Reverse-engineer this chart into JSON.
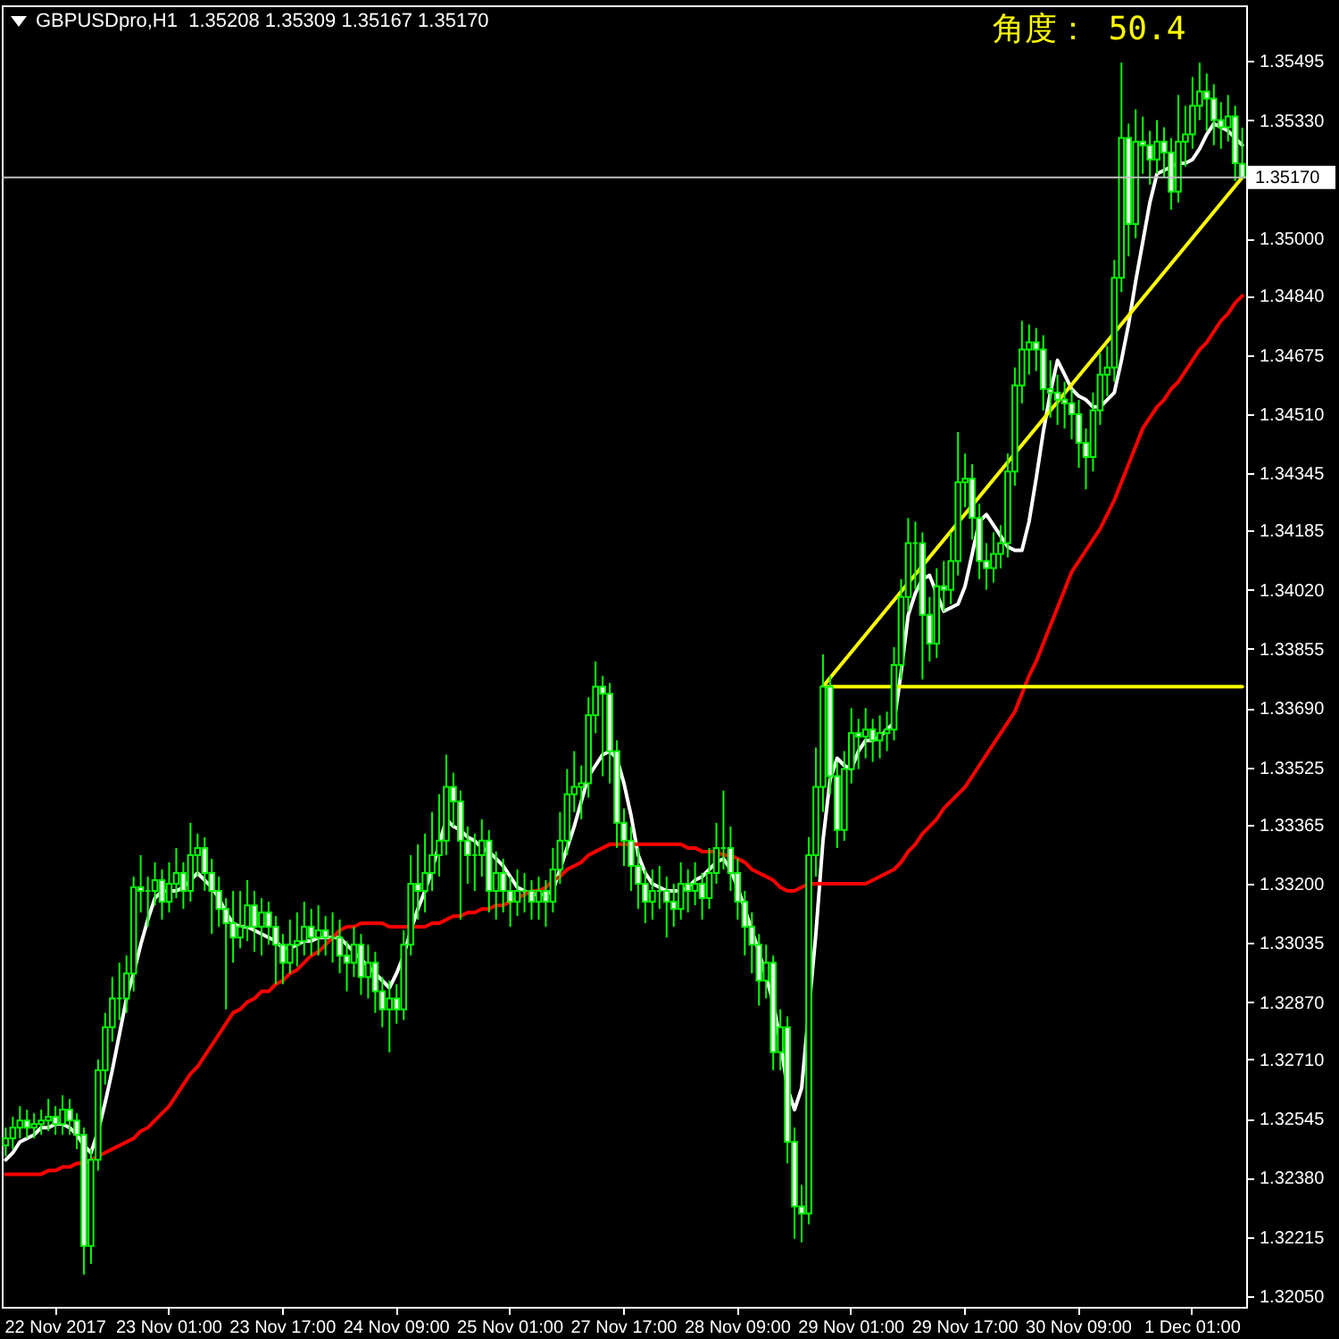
{
  "chart_data": {
    "type": "candlestick",
    "title": "GBPUSDpro,H1  1.35208 1.35309 1.35167 1.35170",
    "annotations": [
      "角度： 50.4"
    ],
    "color": "#00ff00",
    "categories": [
      null,
      null,
      null,
      null,
      null,
      null,
      null,
      "22 Nov 2017",
      null,
      null,
      null,
      null,
      null,
      null,
      null,
      null,
      null,
      null,
      null,
      null,
      null,
      null,
      null,
      "23 Nov 01:00",
      null,
      null,
      null,
      null,
      null,
      null,
      null,
      null,
      null,
      null,
      null,
      null,
      null,
      null,
      null,
      "23 Nov 17:00",
      null,
      null,
      null,
      null,
      null,
      null,
      null,
      null,
      null,
      null,
      null,
      null,
      null,
      null,
      null,
      "24 Nov 09:00",
      null,
      null,
      null,
      null,
      null,
      null,
      null,
      null,
      null,
      null,
      null,
      null,
      null,
      null,
      null,
      "25 Nov 01:00",
      null,
      null,
      null,
      null,
      null,
      null,
      null,
      null,
      null,
      null,
      null,
      null,
      null,
      null,
      null,
      "27 Nov 17:00",
      null,
      null,
      null,
      null,
      null,
      null,
      null,
      null,
      null,
      null,
      null,
      null,
      null,
      null,
      null,
      "28 Nov 09:00",
      null,
      null,
      null,
      null,
      null,
      null,
      null,
      null,
      null,
      null,
      null,
      null,
      null,
      null,
      null,
      "29 Nov 01:00",
      null,
      null,
      null,
      null,
      null,
      null,
      null,
      null,
      null,
      null,
      null,
      null,
      null,
      null,
      null,
      "29 Nov 17:00",
      null,
      null,
      null,
      null,
      null,
      null,
      null,
      null,
      null,
      null,
      null,
      null,
      null,
      null,
      null,
      "30 Nov 09:00",
      null,
      null,
      null,
      null,
      null,
      null,
      null,
      null,
      null,
      null,
      null,
      null,
      null,
      null,
      null,
      "1 Dec 01:00",
      null,
      null,
      null,
      null,
      null,
      null,
      null
    ],
    "ylim": [
      1.3202,
      1.3565
    ],
    "yticks": [
      {
        "value": 1.35495,
        "label": "1.35495"
      },
      {
        "value": 1.3533,
        "label": "1.35330"
      },
      {
        "value": 1.35,
        "label": "1.35000"
      },
      {
        "value": 1.3484,
        "label": "1.34840"
      },
      {
        "value": 1.34675,
        "label": "1.34675"
      },
      {
        "value": 1.3451,
        "label": "1.34510"
      },
      {
        "value": 1.34345,
        "label": "1.34345"
      },
      {
        "value": 1.34185,
        "label": "1.34185"
      },
      {
        "value": 1.3402,
        "label": "1.34020"
      },
      {
        "value": 1.33855,
        "label": "1.33855"
      },
      {
        "value": 1.3369,
        "label": "1.33690"
      },
      {
        "value": 1.33525,
        "label": "1.33525"
      },
      {
        "value": 1.33365,
        "label": "1.33365"
      },
      {
        "value": 1.332,
        "label": "1.33200"
      },
      {
        "value": 1.33035,
        "label": "1.33035"
      },
      {
        "value": 1.3287,
        "label": "1.32870"
      },
      {
        "value": 1.3271,
        "label": "1.32710"
      },
      {
        "value": 1.32545,
        "label": "1.32545"
      },
      {
        "value": 1.3238,
        "label": "1.32380"
      },
      {
        "value": 1.32215,
        "label": "1.32215"
      },
      {
        "value": 1.3205,
        "label": "1.32050"
      }
    ],
    "ref_lines": [
      {
        "axis": "y",
        "value": 1.3517,
        "label": "1.35170",
        "color": "#c0c0c0"
      }
    ],
    "ohlc": [
      [
        1.3247,
        1.3252,
        1.3244,
        1.3249
      ],
      [
        1.3249,
        1.3255,
        1.3246,
        1.3252
      ],
      [
        1.3252,
        1.3258,
        1.3249,
        1.3254
      ],
      [
        1.3254,
        1.3257,
        1.3249,
        1.3252
      ],
      [
        1.3252,
        1.3256,
        1.3249,
        1.3253
      ],
      [
        1.3253,
        1.3257,
        1.325,
        1.3254
      ],
      [
        1.3254,
        1.326,
        1.3251,
        1.3255
      ],
      [
        1.3255,
        1.3258,
        1.325,
        1.3253
      ],
      [
        1.3253,
        1.3261,
        1.325,
        1.3257
      ],
      [
        1.3257,
        1.326,
        1.325,
        1.3254
      ],
      [
        1.3254,
        1.3256,
        1.3246,
        1.325
      ],
      [
        1.325,
        1.3252,
        1.3211,
        1.3219
      ],
      [
        1.3219,
        1.3246,
        1.3214,
        1.3243
      ],
      [
        1.3243,
        1.3271,
        1.324,
        1.3268
      ],
      [
        1.3268,
        1.3284,
        1.3264,
        1.328
      ],
      [
        1.328,
        1.3294,
        1.3276,
        1.3288
      ],
      [
        1.3288,
        1.3298,
        1.3282,
        1.3288
      ],
      [
        1.3288,
        1.33,
        1.3284,
        1.3295
      ],
      [
        1.3295,
        1.3322,
        1.329,
        1.3319
      ],
      [
        1.3319,
        1.3328,
        1.3312,
        1.3318
      ],
      [
        1.3318,
        1.3322,
        1.3308,
        1.3318
      ],
      [
        1.3318,
        1.3326,
        1.3314,
        1.3321
      ],
      [
        1.3321,
        1.3324,
        1.331,
        1.3315
      ],
      [
        1.3315,
        1.3326,
        1.3312,
        1.332
      ],
      [
        1.332,
        1.333,
        1.3316,
        1.3323
      ],
      [
        1.3323,
        1.3326,
        1.3313,
        1.3318
      ],
      [
        1.3318,
        1.3337,
        1.3315,
        1.3328
      ],
      [
        1.3328,
        1.3334,
        1.3322,
        1.333
      ],
      [
        1.333,
        1.3333,
        1.3318,
        1.3323
      ],
      [
        1.3323,
        1.3327,
        1.3306,
        1.3318
      ],
      [
        1.3318,
        1.3322,
        1.3308,
        1.3313
      ],
      [
        1.3313,
        1.3316,
        1.3285,
        1.3309
      ],
      [
        1.3309,
        1.3318,
        1.3298,
        1.3305
      ],
      [
        1.3305,
        1.3318,
        1.3302,
        1.3308
      ],
      [
        1.3308,
        1.3321,
        1.3304,
        1.3314
      ],
      [
        1.3314,
        1.3318,
        1.3301,
        1.3308
      ],
      [
        1.3308,
        1.3316,
        1.33,
        1.3312
      ],
      [
        1.3312,
        1.3315,
        1.3303,
        1.3308
      ],
      [
        1.3308,
        1.3311,
        1.3292,
        1.3303
      ],
      [
        1.3303,
        1.3306,
        1.3292,
        1.3298
      ],
      [
        1.3298,
        1.331,
        1.3295,
        1.3303
      ],
      [
        1.3303,
        1.3312,
        1.3297,
        1.3304
      ],
      [
        1.3304,
        1.3315,
        1.33,
        1.3308
      ],
      [
        1.3308,
        1.3313,
        1.33,
        1.3305
      ],
      [
        1.3305,
        1.3314,
        1.33,
        1.3307
      ],
      [
        1.3307,
        1.3311,
        1.33,
        1.3305
      ],
      [
        1.3305,
        1.3312,
        1.3298,
        1.3305
      ],
      [
        1.3305,
        1.331,
        1.3295,
        1.33
      ],
      [
        1.33,
        1.3304,
        1.329,
        1.3298
      ],
      [
        1.3298,
        1.3308,
        1.3294,
        1.3303
      ],
      [
        1.3303,
        1.3306,
        1.3289,
        1.3294
      ],
      [
        1.3294,
        1.3303,
        1.3288,
        1.3298
      ],
      [
        1.3298,
        1.3301,
        1.3284,
        1.329
      ],
      [
        1.329,
        1.3294,
        1.328,
        1.3285
      ],
      [
        1.3285,
        1.3293,
        1.3273,
        1.3288
      ],
      [
        1.3288,
        1.3292,
        1.3281,
        1.3285
      ],
      [
        1.3285,
        1.3307,
        1.3282,
        1.3303
      ],
      [
        1.3303,
        1.3328,
        1.33,
        1.332
      ],
      [
        1.332,
        1.3331,
        1.331,
        1.3318
      ],
      [
        1.3318,
        1.3334,
        1.3312,
        1.3323
      ],
      [
        1.3323,
        1.334,
        1.3318,
        1.3328
      ],
      [
        1.3328,
        1.3345,
        1.3322,
        1.3332
      ],
      [
        1.3332,
        1.3356,
        1.3328,
        1.3347
      ],
      [
        1.3347,
        1.3351,
        1.3336,
        1.3343
      ],
      [
        1.3343,
        1.3346,
        1.331,
        1.3332
      ],
      [
        1.3332,
        1.3336,
        1.332,
        1.3328
      ],
      [
        1.3328,
        1.3334,
        1.3318,
        1.3328
      ],
      [
        1.3328,
        1.3338,
        1.3322,
        1.3332
      ],
      [
        1.3332,
        1.3335,
        1.3312,
        1.3318
      ],
      [
        1.3318,
        1.3329,
        1.331,
        1.3323
      ],
      [
        1.3323,
        1.3327,
        1.3312,
        1.3318
      ],
      [
        1.3318,
        1.3322,
        1.3308,
        1.3315
      ],
      [
        1.3315,
        1.3324,
        1.3311,
        1.3318
      ],
      [
        1.3318,
        1.3323,
        1.3312,
        1.3318
      ],
      [
        1.3318,
        1.3321,
        1.331,
        1.3315
      ],
      [
        1.3315,
        1.3322,
        1.331,
        1.3318
      ],
      [
        1.3318,
        1.3321,
        1.3308,
        1.3315
      ],
      [
        1.3315,
        1.333,
        1.3312,
        1.3324
      ],
      [
        1.3324,
        1.334,
        1.332,
        1.3332
      ],
      [
        1.3332,
        1.3352,
        1.3328,
        1.3345
      ],
      [
        1.3345,
        1.3357,
        1.334,
        1.3347
      ],
      [
        1.3347,
        1.3353,
        1.3338,
        1.3348
      ],
      [
        1.3348,
        1.3372,
        1.3344,
        1.3367
      ],
      [
        1.3367,
        1.3382,
        1.3362,
        1.3375
      ],
      [
        1.3375,
        1.3378,
        1.335,
        1.3373
      ],
      [
        1.3373,
        1.3376,
        1.3348,
        1.3357
      ],
      [
        1.3357,
        1.336,
        1.333,
        1.3337
      ],
      [
        1.3337,
        1.3341,
        1.3325,
        1.3332
      ],
      [
        1.3332,
        1.3336,
        1.3318,
        1.3325
      ],
      [
        1.3325,
        1.333,
        1.3313,
        1.332
      ],
      [
        1.332,
        1.3324,
        1.3309,
        1.3315
      ],
      [
        1.3315,
        1.3324,
        1.331,
        1.3318
      ],
      [
        1.3318,
        1.3325,
        1.3313,
        1.3318
      ],
      [
        1.3318,
        1.3322,
        1.3305,
        1.3315
      ],
      [
        1.3315,
        1.332,
        1.3308,
        1.3313
      ],
      [
        1.3313,
        1.3326,
        1.331,
        1.332
      ],
      [
        1.332,
        1.3324,
        1.3312,
        1.3318
      ],
      [
        1.3318,
        1.3326,
        1.3314,
        1.332
      ],
      [
        1.332,
        1.3323,
        1.331,
        1.3316
      ],
      [
        1.3316,
        1.333,
        1.3313,
        1.3323
      ],
      [
        1.3323,
        1.3337,
        1.332,
        1.333
      ],
      [
        1.333,
        1.3346,
        1.3324,
        1.333
      ],
      [
        1.333,
        1.3336,
        1.3318,
        1.3323
      ],
      [
        1.3323,
        1.3327,
        1.331,
        1.3315
      ],
      [
        1.3315,
        1.3318,
        1.33,
        1.3308
      ],
      [
        1.3308,
        1.3312,
        1.3295,
        1.3303
      ],
      [
        1.3303,
        1.3306,
        1.3286,
        1.3293
      ],
      [
        1.3293,
        1.3303,
        1.3288,
        1.3298
      ],
      [
        1.3298,
        1.33,
        1.3268,
        1.3273
      ],
      [
        1.3273,
        1.3285,
        1.3268,
        1.328
      ],
      [
        1.328,
        1.3283,
        1.3242,
        1.3248
      ],
      [
        1.3248,
        1.3252,
        1.3221,
        1.323
      ],
      [
        1.323,
        1.3236,
        1.322,
        1.3228
      ],
      [
        1.3228,
        1.3333,
        1.3225,
        1.3328
      ],
      [
        1.3328,
        1.3358,
        1.3322,
        1.3347
      ],
      [
        1.3347,
        1.3384,
        1.334,
        1.3375
      ],
      [
        1.3375,
        1.3378,
        1.3345,
        1.335
      ],
      [
        1.335,
        1.3354,
        1.333,
        1.3335
      ],
      [
        1.3335,
        1.3357,
        1.3332,
        1.3352
      ],
      [
        1.3352,
        1.3369,
        1.3348,
        1.3362
      ],
      [
        1.3362,
        1.3366,
        1.3352,
        1.3361
      ],
      [
        1.3361,
        1.3369,
        1.3355,
        1.3363
      ],
      [
        1.3363,
        1.3366,
        1.3354,
        1.336
      ],
      [
        1.336,
        1.3367,
        1.3355,
        1.3362
      ],
      [
        1.3362,
        1.3368,
        1.3357,
        1.3363
      ],
      [
        1.3363,
        1.3386,
        1.336,
        1.3381
      ],
      [
        1.3381,
        1.3405,
        1.3377,
        1.34
      ],
      [
        1.34,
        1.3422,
        1.3396,
        1.3415
      ],
      [
        1.3415,
        1.3421,
        1.3402,
        1.3415
      ],
      [
        1.3415,
        1.3418,
        1.3377,
        1.3395
      ],
      [
        1.3395,
        1.34,
        1.3382,
        1.3387
      ],
      [
        1.3387,
        1.3408,
        1.3383,
        1.3403
      ],
      [
        1.3403,
        1.341,
        1.3396,
        1.3402
      ],
      [
        1.3402,
        1.3418,
        1.3398,
        1.341
      ],
      [
        1.341,
        1.3446,
        1.3406,
        1.3432
      ],
      [
        1.3432,
        1.344,
        1.3425,
        1.3433
      ],
      [
        1.3433,
        1.3437,
        1.3416,
        1.3422
      ],
      [
        1.3422,
        1.3426,
        1.3405,
        1.341
      ],
      [
        1.341,
        1.3415,
        1.3402,
        1.3408
      ],
      [
        1.3408,
        1.3418,
        1.3404,
        1.3412
      ],
      [
        1.3412,
        1.342,
        1.3408,
        1.3415
      ],
      [
        1.3415,
        1.344,
        1.3411,
        1.3435
      ],
      [
        1.3435,
        1.3464,
        1.3431,
        1.3459
      ],
      [
        1.3459,
        1.3477,
        1.3454,
        1.3469
      ],
      [
        1.3469,
        1.3476,
        1.3462,
        1.3471
      ],
      [
        1.3471,
        1.3475,
        1.3463,
        1.3469
      ],
      [
        1.3469,
        1.3473,
        1.3452,
        1.3458
      ],
      [
        1.3458,
        1.3466,
        1.345,
        1.3457
      ],
      [
        1.3457,
        1.3462,
        1.3448,
        1.3455
      ],
      [
        1.3455,
        1.346,
        1.3447,
        1.3454
      ],
      [
        1.3454,
        1.3458,
        1.3444,
        1.3451
      ],
      [
        1.3451,
        1.3455,
        1.3436,
        1.3443
      ],
      [
        1.3443,
        1.3447,
        1.343,
        1.3439
      ],
      [
        1.3439,
        1.3457,
        1.3435,
        1.3452
      ],
      [
        1.3452,
        1.3468,
        1.3448,
        1.3462
      ],
      [
        1.3462,
        1.347,
        1.3456,
        1.3464
      ],
      [
        1.3464,
        1.3494,
        1.346,
        1.3489
      ],
      [
        1.3489,
        1.3549,
        1.3485,
        1.3528
      ],
      [
        1.3528,
        1.3532,
        1.3495,
        1.3504
      ],
      [
        1.3504,
        1.3536,
        1.35,
        1.3527
      ],
      [
        1.3527,
        1.3534,
        1.3518,
        1.3526
      ],
      [
        1.3526,
        1.353,
        1.3515,
        1.3522
      ],
      [
        1.3522,
        1.3533,
        1.3518,
        1.3527
      ],
      [
        1.3527,
        1.3531,
        1.3517,
        1.3524
      ],
      [
        1.3524,
        1.3528,
        1.3508,
        1.3513
      ],
      [
        1.3513,
        1.354,
        1.351,
        1.3527
      ],
      [
        1.3527,
        1.3537,
        1.352,
        1.3529
      ],
      [
        1.3529,
        1.3545,
        1.3525,
        1.3537
      ],
      [
        1.3537,
        1.3549,
        1.3533,
        1.3541
      ],
      [
        1.3541,
        1.3546,
        1.353,
        1.3539
      ],
      [
        1.3539,
        1.3543,
        1.3526,
        1.3533
      ],
      [
        1.3533,
        1.3538,
        1.3525,
        1.3531
      ],
      [
        1.3531,
        1.354,
        1.3527,
        1.3534
      ],
      [
        1.3534,
        1.3537,
        1.3516,
        1.3521
      ],
      [
        1.35208,
        1.35309,
        1.35167,
        1.3517
      ]
    ],
    "series": [
      {
        "type": "line",
        "color": "#ffffff",
        "values": [
          1.3243,
          1.3245,
          1.3248,
          1.3249,
          1.325,
          1.3252,
          1.3252,
          1.3253,
          1.3253,
          1.3252,
          1.325,
          1.3247,
          1.3245,
          1.3251,
          1.3259,
          1.3268,
          1.3278,
          1.3288,
          1.3295,
          1.3303,
          1.331,
          1.3316,
          1.3318,
          1.3318,
          1.3318,
          1.3319,
          1.3321,
          1.3323,
          1.3321,
          1.3319,
          1.3316,
          1.3312,
          1.3309,
          1.3308,
          1.3308,
          1.3307,
          1.3306,
          1.3305,
          1.3304,
          1.3302,
          1.3302,
          1.3303,
          1.3304,
          1.3304,
          1.3305,
          1.3305,
          1.3305,
          1.3305,
          1.3303,
          1.3301,
          1.3299,
          1.3297,
          1.3295,
          1.3293,
          1.3291,
          1.3295,
          1.33,
          1.3307,
          1.3313,
          1.3318,
          1.3324,
          1.3331,
          1.3338,
          1.3336,
          1.3335,
          1.3333,
          1.3332,
          1.333,
          1.3329,
          1.3327,
          1.3325,
          1.3322,
          1.3319,
          1.3318,
          1.3317,
          1.3317,
          1.3317,
          1.3318,
          1.3324,
          1.333,
          1.3336,
          1.3343,
          1.335,
          1.3353,
          1.3356,
          1.3357,
          1.3355,
          1.3348,
          1.3339,
          1.3328,
          1.3323,
          1.332,
          1.3319,
          1.3318,
          1.3318,
          1.3318,
          1.3319,
          1.3321,
          1.3322,
          1.3324,
          1.3326,
          1.3327,
          1.3324,
          1.3319,
          1.3313,
          1.3307,
          1.3301,
          1.3294,
          1.3287,
          1.3276,
          1.3263,
          1.3257,
          1.3263,
          null,
          1.3306,
          1.3332,
          1.3349,
          1.3355,
          1.3353,
          1.3352,
          1.3357,
          1.336,
          1.336,
          1.3361,
          1.3363,
          1.3365,
          1.3379,
          1.3395,
          1.3401,
          1.3405,
          1.3406,
          1.3401,
          1.3396,
          1.3397,
          1.3398,
          1.3403,
          1.3412,
          1.3421,
          1.3423,
          1.342,
          1.3417,
          1.3414,
          1.3413,
          1.3413,
          1.3421,
          1.3433,
          1.3446,
          1.3457,
          1.3466,
          1.3462,
          1.3458,
          1.3456,
          1.3455,
          1.3453,
          1.3453,
          1.3455,
          1.3457,
          1.3466,
          1.3476,
          1.3488,
          1.3499,
          1.351,
          1.3518,
          1.3519,
          1.352,
          1.3521,
          1.3521,
          1.3522,
          1.3525,
          1.3529,
          1.3532,
          1.3531,
          1.353,
          1.3528,
          1.3526
        ]
      },
      {
        "type": "line",
        "color": "#ff0000",
        "values": [
          1.3239,
          1.3239,
          1.3239,
          1.3239,
          1.3239,
          1.3239,
          1.324,
          1.324,
          1.3241,
          1.3241,
          1.3242,
          1.3242,
          1.3243,
          1.3244,
          1.3245,
          1.3246,
          1.3247,
          1.3248,
          1.3249,
          1.3251,
          1.3252,
          1.3254,
          1.3256,
          1.3258,
          1.3261,
          1.3264,
          1.3267,
          1.3269,
          1.3272,
          1.3275,
          1.3278,
          1.3281,
          1.3284,
          1.3285,
          1.3287,
          1.3288,
          1.329,
          1.329,
          1.3292,
          1.3293,
          1.3295,
          1.3296,
          1.3298,
          1.33,
          1.3301,
          1.3303,
          1.3305,
          1.3307,
          1.3308,
          1.3308,
          1.3309,
          1.3309,
          1.3309,
          1.3309,
          1.3308,
          1.3308,
          1.3308,
          1.3308,
          1.3308,
          1.3308,
          1.3309,
          1.3309,
          1.331,
          1.3311,
          1.3311,
          1.3312,
          1.3312,
          1.3313,
          1.3313,
          1.3314,
          1.3314,
          1.3315,
          1.3316,
          1.3317,
          1.3318,
          1.3318,
          1.3319,
          1.3321,
          1.3322,
          1.3324,
          1.3325,
          1.3326,
          1.3328,
          1.3329,
          1.333,
          1.3331,
          1.3331,
          1.3331,
          1.3331,
          1.3331,
          1.3331,
          1.3331,
          1.3331,
          1.3331,
          1.3331,
          1.3331,
          1.333,
          1.333,
          1.3329,
          1.3329,
          1.3329,
          1.3328,
          1.3328,
          1.3327,
          1.3326,
          1.3324,
          1.3323,
          1.3322,
          1.3321,
          1.3319,
          1.3318,
          1.3318,
          1.3319,
          1.332,
          1.332,
          1.332,
          1.332,
          1.332,
          1.332,
          1.332,
          1.332,
          1.332,
          1.3321,
          1.3322,
          1.3323,
          1.3324,
          1.3326,
          1.3329,
          1.3331,
          1.3334,
          1.3336,
          1.3338,
          1.3341,
          1.3343,
          1.3345,
          1.3347,
          1.335,
          1.3353,
          1.3356,
          1.3359,
          1.3362,
          1.3365,
          1.3368,
          1.3373,
          1.3378,
          1.3382,
          1.3387,
          1.3392,
          1.3397,
          1.3402,
          1.3407,
          1.341,
          1.3413,
          1.3416,
          1.3419,
          1.3423,
          1.3427,
          1.3432,
          1.3437,
          1.3442,
          1.3447,
          1.345,
          1.3453,
          1.3455,
          1.3458,
          1.346,
          1.3463,
          1.3466,
          1.3469,
          1.3471,
          1.3474,
          1.3477,
          1.3479,
          1.3482,
          1.3484
        ]
      },
      {
        "type": "line",
        "color": "#ffff00",
        "values": [
          null,
          null,
          null,
          null,
          null,
          null,
          null,
          null,
          null,
          null,
          null,
          null,
          null,
          null,
          null,
          null,
          null,
          null,
          null,
          null,
          null,
          null,
          null,
          null,
          null,
          null,
          null,
          null,
          null,
          null,
          null,
          null,
          null,
          null,
          null,
          null,
          null,
          null,
          null,
          null,
          null,
          null,
          null,
          null,
          null,
          null,
          null,
          null,
          null,
          null,
          null,
          null,
          null,
          null,
          null,
          null,
          null,
          null,
          null,
          null,
          null,
          null,
          null,
          null,
          null,
          null,
          null,
          null,
          null,
          null,
          null,
          null,
          null,
          null,
          null,
          null,
          null,
          null,
          null,
          null,
          null,
          null,
          null,
          null,
          null,
          null,
          null,
          null,
          null,
          null,
          null,
          null,
          null,
          null,
          null,
          null,
          null,
          null,
          null,
          null,
          null,
          null,
          null,
          null,
          null,
          null,
          null,
          null,
          null,
          null,
          null,
          null,
          null,
          null,
          null,
          1.3375,
          null,
          null,
          null,
          null,
          null,
          null,
          null,
          null,
          null,
          null,
          null,
          null,
          null,
          null,
          null,
          null,
          null,
          null,
          null,
          null,
          null,
          null,
          null,
          null,
          null,
          null,
          null,
          null,
          null,
          null,
          null,
          null,
          null,
          null,
          null,
          null,
          null,
          null,
          null,
          null,
          null,
          null,
          null,
          null,
          null,
          null,
          null,
          null,
          null,
          null,
          null,
          null,
          null,
          null,
          null,
          null,
          null,
          null,
          1.3517
        ]
      },
      {
        "type": "line",
        "color": "#ffff00",
        "values": [
          null,
          null,
          null,
          null,
          null,
          null,
          null,
          null,
          null,
          null,
          null,
          null,
          null,
          null,
          null,
          null,
          null,
          null,
          null,
          null,
          null,
          null,
          null,
          null,
          null,
          null,
          null,
          null,
          null,
          null,
          null,
          null,
          null,
          null,
          null,
          null,
          null,
          null,
          null,
          null,
          null,
          null,
          null,
          null,
          null,
          null,
          null,
          null,
          null,
          null,
          null,
          null,
          null,
          null,
          null,
          null,
          null,
          null,
          null,
          null,
          null,
          null,
          null,
          null,
          null,
          null,
          null,
          null,
          null,
          null,
          null,
          null,
          null,
          null,
          null,
          null,
          null,
          null,
          null,
          null,
          null,
          null,
          null,
          null,
          null,
          null,
          null,
          null,
          null,
          null,
          null,
          null,
          null,
          null,
          null,
          null,
          null,
          null,
          null,
          null,
          null,
          null,
          null,
          null,
          null,
          null,
          null,
          null,
          null,
          null,
          null,
          null,
          null,
          null,
          null,
          1.3375,
          null,
          null,
          null,
          null,
          null,
          null,
          null,
          null,
          null,
          null,
          null,
          null,
          null,
          null,
          null,
          null,
          null,
          null,
          null,
          null,
          null,
          null,
          null,
          null,
          null,
          null,
          null,
          null,
          null,
          null,
          null,
          null,
          null,
          null,
          null,
          null,
          null,
          null,
          null,
          null,
          null,
          null,
          null,
          null,
          null,
          null,
          null,
          null,
          null,
          null,
          null,
          null,
          null,
          null,
          null,
          null,
          null,
          null,
          1.3375
        ]
      }
    ]
  }
}
